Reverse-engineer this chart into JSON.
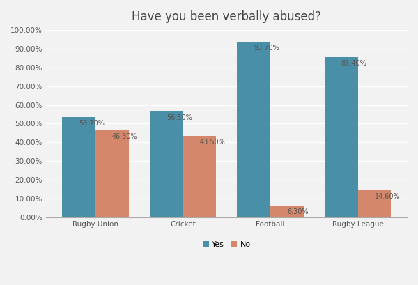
{
  "title": "Have you been verbally abused?",
  "categories": [
    "Rugby Union",
    "Cricket",
    "Football",
    "Rugby League"
  ],
  "yes_values": [
    53.7,
    56.5,
    93.7,
    85.4
  ],
  "no_values": [
    46.3,
    43.5,
    6.3,
    14.6
  ],
  "yes_labels": [
    "53.70%",
    "56.50%",
    "93.70%",
    "85.40%"
  ],
  "no_labels": [
    "46.30%",
    "43.50%",
    "6.30%",
    "14.60%"
  ],
  "yes_color": "#4a8fa8",
  "no_color": "#d4876a",
  "ylim": [
    0,
    100
  ],
  "ytick_labels": [
    "0.00%",
    "10.00%",
    "20.00%",
    "30.00%",
    "40.00%",
    "50.00%",
    "60.00%",
    "70.00%",
    "80.00%",
    "90.00%",
    "100.00%"
  ],
  "ytick_values": [
    0,
    10,
    20,
    30,
    40,
    50,
    60,
    70,
    80,
    90,
    100
  ],
  "legend_labels": [
    "Yes",
    "No"
  ],
  "bar_width": 0.38,
  "background_color": "#f2f2f2",
  "plot_bg_color": "#f2f2f2",
  "grid_color": "#ffffff",
  "title_fontsize": 12,
  "label_fontsize": 7,
  "tick_fontsize": 7.5,
  "legend_fontsize": 8,
  "label_color": "#555555"
}
